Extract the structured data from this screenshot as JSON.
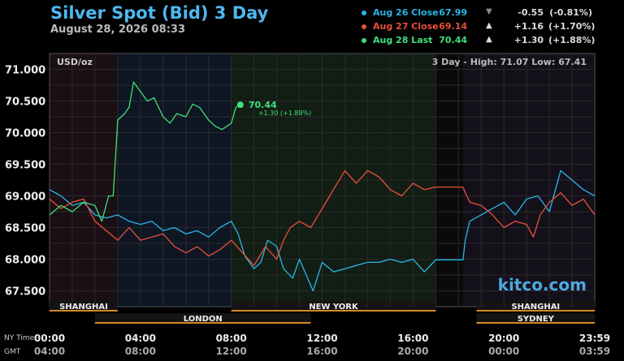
{
  "header": {
    "title": "Silver Spot (Bid) 3 Day",
    "subtitle": "August 28, 2026 08:33"
  },
  "legend": [
    {
      "label": "Aug 26 Close",
      "value": "67.99",
      "arrow": "▼",
      "change": "-0.55",
      "pct": "(-0.81%)",
      "color": "#29b6e8"
    },
    {
      "label": "Aug 27 Close",
      "value": "69.14",
      "arrow": "▲",
      "change": "+1.16",
      "pct": "(+1.70%)",
      "color": "#e8503a"
    },
    {
      "label": "Aug 28 Last",
      "value": "70.44",
      "arrow": "▲",
      "change": "+1.30",
      "pct": "(+1.88%)",
      "color": "#3ee07a"
    }
  ],
  "chart_data": {
    "type": "line",
    "unit_label": "USD/oz",
    "range_label": "3 Day - High: 71.07  Low: 67.41",
    "watermark": "kitco.com",
    "ylim": [
      67.25,
      71.25
    ],
    "y_ticks": [
      "71.000",
      "70.500",
      "70.000",
      "69.500",
      "69.000",
      "68.500",
      "68.000",
      "67.500"
    ],
    "x_ticks_ny": [
      "00:00",
      "04:00",
      "08:00",
      "12:00",
      "16:00",
      "20:00",
      "23:59"
    ],
    "x_ticks_gmt": [
      "04:00",
      "08:00",
      "12:00",
      "16:00",
      "20:00",
      "00:00",
      "03:59"
    ],
    "x_axis_labels": [
      "NY Time",
      "GMT"
    ],
    "sessions_top": [
      "SHANGHAI",
      "NEW YORK",
      "SHANGHAI"
    ],
    "sessions_bottom": [
      "LONDON",
      "SYDNEY"
    ],
    "last_label": {
      "value": "70.44",
      "change": "+1.30 (+1.88%)"
    },
    "series": [
      {
        "name": "Aug 26 Close",
        "color": "#29b6e8",
        "points": [
          [
            0,
            69.1
          ],
          [
            0.5,
            69.0
          ],
          [
            1,
            68.85
          ],
          [
            1.5,
            68.9
          ],
          [
            2,
            68.7
          ],
          [
            2.5,
            68.65
          ],
          [
            3,
            68.7
          ],
          [
            3.5,
            68.6
          ],
          [
            4,
            68.55
          ],
          [
            4.5,
            68.6
          ],
          [
            5,
            68.45
          ],
          [
            5.5,
            68.5
          ],
          [
            6,
            68.4
          ],
          [
            6.5,
            68.45
          ],
          [
            7,
            68.35
          ],
          [
            7.5,
            68.5
          ],
          [
            8,
            68.6
          ],
          [
            8.3,
            68.4
          ],
          [
            8.6,
            68.05
          ],
          [
            9,
            67.85
          ],
          [
            9.3,
            67.95
          ],
          [
            9.6,
            68.3
          ],
          [
            10,
            68.2
          ],
          [
            10.3,
            67.85
          ],
          [
            10.7,
            67.7
          ],
          [
            11,
            68.0
          ],
          [
            11.3,
            67.75
          ],
          [
            11.6,
            67.5
          ],
          [
            12,
            67.95
          ],
          [
            12.5,
            67.8
          ],
          [
            13,
            67.85
          ],
          [
            13.5,
            67.9
          ],
          [
            14,
            67.95
          ],
          [
            14.5,
            67.95
          ],
          [
            15,
            68.0
          ],
          [
            15.5,
            67.95
          ],
          [
            16,
            68.0
          ],
          [
            16.5,
            67.8
          ],
          [
            17,
            67.99
          ],
          [
            17.3,
            67.99
          ],
          [
            18.2,
            67.99
          ],
          [
            18.3,
            68.3
          ],
          [
            18.5,
            68.6
          ],
          [
            19,
            68.7
          ],
          [
            19.5,
            68.8
          ],
          [
            20,
            68.9
          ],
          [
            20.5,
            68.7
          ],
          [
            21,
            68.95
          ],
          [
            21.5,
            69.0
          ],
          [
            22,
            68.75
          ],
          [
            22.5,
            69.4
          ],
          [
            23,
            69.25
          ],
          [
            23.5,
            69.1
          ],
          [
            24,
            69.0
          ]
        ]
      },
      {
        "name": "Aug 27 Close",
        "color": "#e8503a",
        "points": [
          [
            0,
            68.95
          ],
          [
            0.5,
            68.8
          ],
          [
            1,
            68.9
          ],
          [
            1.5,
            68.95
          ],
          [
            2,
            68.6
          ],
          [
            2.5,
            68.45
          ],
          [
            3,
            68.3
          ],
          [
            3.5,
            68.5
          ],
          [
            4,
            68.3
          ],
          [
            4.5,
            68.35
          ],
          [
            5,
            68.4
          ],
          [
            5.5,
            68.2
          ],
          [
            6,
            68.1
          ],
          [
            6.5,
            68.2
          ],
          [
            7,
            68.05
          ],
          [
            7.5,
            68.15
          ],
          [
            8,
            68.3
          ],
          [
            8.5,
            68.1
          ],
          [
            9,
            67.9
          ],
          [
            9.5,
            68.2
          ],
          [
            10,
            68.0
          ],
          [
            10.3,
            68.3
          ],
          [
            10.6,
            68.5
          ],
          [
            11,
            68.6
          ],
          [
            11.5,
            68.5
          ],
          [
            12,
            68.8
          ],
          [
            12.5,
            69.1
          ],
          [
            13,
            69.4
          ],
          [
            13.5,
            69.2
          ],
          [
            14,
            69.4
          ],
          [
            14.5,
            69.3
          ],
          [
            15,
            69.1
          ],
          [
            15.5,
            69.0
          ],
          [
            16,
            69.2
          ],
          [
            16.5,
            69.1
          ],
          [
            17,
            69.14
          ],
          [
            18.2,
            69.14
          ],
          [
            18.3,
            69.05
          ],
          [
            18.5,
            68.9
          ],
          [
            19,
            68.85
          ],
          [
            19.5,
            68.7
          ],
          [
            20,
            68.5
          ],
          [
            20.5,
            68.6
          ],
          [
            21,
            68.55
          ],
          [
            21.3,
            68.35
          ],
          [
            21.6,
            68.7
          ],
          [
            22,
            68.9
          ],
          [
            22.5,
            69.05
          ],
          [
            23,
            68.85
          ],
          [
            23.5,
            68.95
          ],
          [
            24,
            68.7
          ]
        ]
      },
      {
        "name": "Aug 28 Last",
        "color": "#3ee07a",
        "points": [
          [
            0,
            68.7
          ],
          [
            0.5,
            68.85
          ],
          [
            1,
            68.75
          ],
          [
            1.5,
            68.9
          ],
          [
            2,
            68.85
          ],
          [
            2.3,
            68.6
          ],
          [
            2.6,
            69.0
          ],
          [
            2.8,
            69.0
          ],
          [
            3,
            70.2
          ],
          [
            3.3,
            70.3
          ],
          [
            3.5,
            70.4
          ],
          [
            3.7,
            70.8
          ],
          [
            4,
            70.65
          ],
          [
            4.3,
            70.5
          ],
          [
            4.6,
            70.55
          ],
          [
            5,
            70.25
          ],
          [
            5.3,
            70.15
          ],
          [
            5.6,
            70.3
          ],
          [
            6,
            70.25
          ],
          [
            6.3,
            70.45
          ],
          [
            6.6,
            70.4
          ],
          [
            7,
            70.2
          ],
          [
            7.3,
            70.1
          ],
          [
            7.6,
            70.05
          ],
          [
            8,
            70.15
          ],
          [
            8.2,
            70.4
          ],
          [
            8.4,
            70.44
          ]
        ]
      }
    ]
  }
}
